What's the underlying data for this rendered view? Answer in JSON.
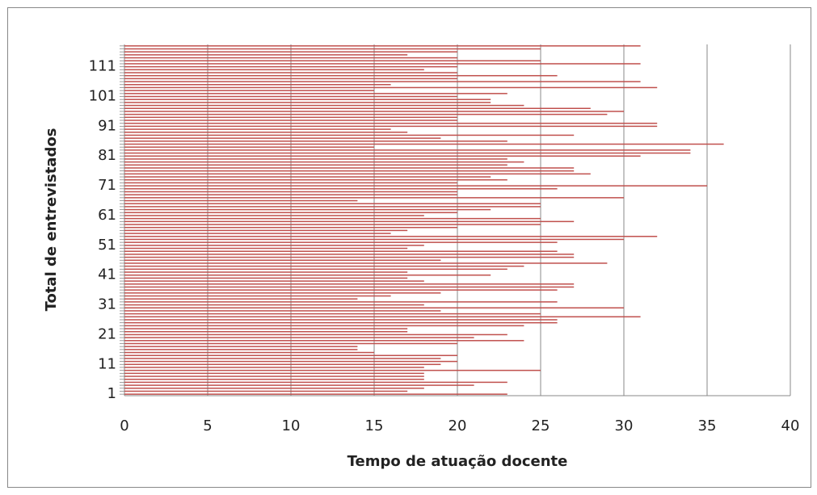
{
  "chart_data": {
    "type": "barh",
    "x_label": "Tempo de atuação docente",
    "y_label": "Total de entrevistados",
    "categories": [
      "1",
      null,
      null,
      null,
      null,
      null,
      null,
      null,
      null,
      null,
      "11",
      null,
      null,
      null,
      null,
      null,
      null,
      null,
      null,
      null,
      "21",
      null,
      null,
      null,
      null,
      null,
      null,
      null,
      null,
      null,
      "31",
      null,
      null,
      null,
      null,
      null,
      null,
      null,
      null,
      null,
      "41",
      null,
      null,
      null,
      null,
      null,
      null,
      null,
      null,
      null,
      "51",
      null,
      null,
      null,
      null,
      null,
      null,
      null,
      null,
      null,
      "61",
      null,
      null,
      null,
      null,
      null,
      null,
      null,
      null,
      null,
      "71",
      null,
      null,
      null,
      null,
      null,
      null,
      null,
      null,
      null,
      "81",
      null,
      null,
      null,
      null,
      null,
      null,
      null,
      null,
      null,
      "91",
      null,
      null,
      null,
      null,
      null,
      null,
      null,
      null,
      null,
      "101",
      null,
      null,
      null,
      null,
      null,
      null,
      null,
      null,
      null,
      "111",
      null,
      null,
      null,
      null,
      null,
      null,
      null
    ],
    "values": [
      23,
      17,
      18,
      21,
      23,
      18,
      18,
      18,
      25,
      18,
      19,
      20,
      19,
      20,
      15,
      14,
      14,
      20,
      24,
      21,
      23,
      17,
      17,
      24,
      26,
      26,
      31,
      25,
      19,
      30,
      18,
      26,
      14,
      16,
      19,
      26,
      27,
      27,
      18,
      17,
      22,
      17,
      23,
      24,
      29,
      19,
      27,
      27,
      26,
      17,
      18,
      26,
      30,
      32,
      16,
      17,
      20,
      25,
      27,
      25,
      18,
      20,
      22,
      25,
      25,
      14,
      30,
      20,
      20,
      26,
      35,
      20,
      23,
      22,
      28,
      27,
      27,
      23,
      24,
      23,
      31,
      34,
      34,
      15,
      36,
      23,
      19,
      27,
      17,
      16,
      32,
      32,
      20,
      20,
      29,
      30,
      28,
      24,
      22,
      22,
      20,
      23,
      15,
      32,
      16,
      31,
      20,
      26,
      20,
      18,
      20,
      31,
      25,
      20,
      17,
      20,
      25,
      31
    ],
    "color": "#c0504d",
    "xlim": [
      0,
      40
    ],
    "xticks": [
      0,
      5,
      10,
      15,
      20,
      25,
      30,
      35,
      40
    ],
    "grid": true
  }
}
